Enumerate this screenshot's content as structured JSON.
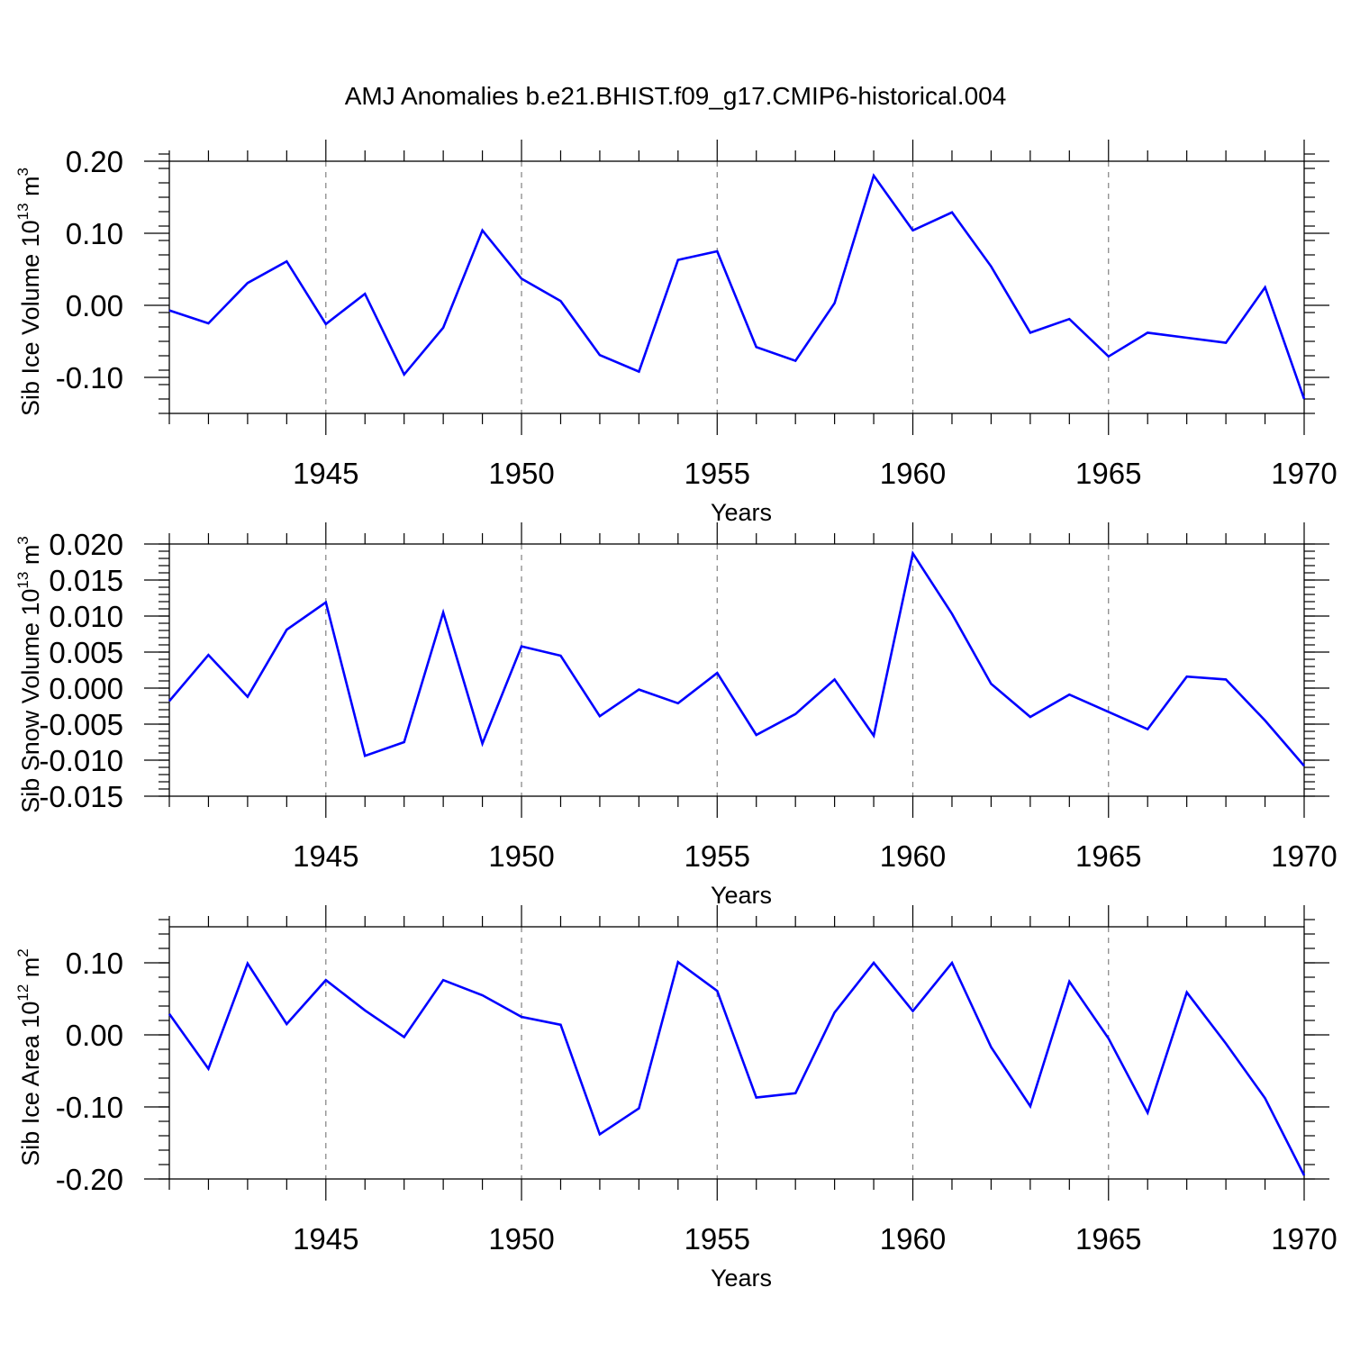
{
  "title": "AMJ Anomalies b.e21.BHIST.f09_g17.CMIP6-historical.004",
  "line_color": "#0000ff",
  "chart_data": [
    {
      "type": "line",
      "x": [
        1941,
        1942,
        1943,
        1944,
        1945,
        1946,
        1947,
        1948,
        1949,
        1950,
        1951,
        1952,
        1953,
        1954,
        1955,
        1956,
        1957,
        1958,
        1959,
        1960,
        1961,
        1962,
        1963,
        1964,
        1965,
        1966,
        1967,
        1968,
        1969,
        1970
      ],
      "values": [
        -0.007,
        -0.025,
        0.031,
        0.061,
        -0.026,
        0.016,
        -0.096,
        -0.031,
        0.104,
        0.037,
        0.006,
        -0.069,
        -0.092,
        0.063,
        0.075,
        -0.058,
        -0.077,
        0.003,
        0.18,
        0.104,
        0.129,
        0.054,
        -0.038,
        -0.019,
        -0.071,
        -0.038,
        -0.045,
        -0.052,
        0.025,
        -0.13
      ],
      "ylabel": "Sib Ice Volume 10",
      "ylabel_exp": "13",
      "ylabel_unit": " m",
      "ylabel_unit_exp": "3",
      "xlabel": "Years",
      "xlim": [
        1941,
        1970
      ],
      "ylim": [
        -0.15,
        0.2
      ],
      "yticks": [
        -0.1,
        0.0,
        0.1,
        0.2
      ],
      "ytick_labels": [
        "-0.10",
        "0.00",
        "0.10",
        "0.20"
      ],
      "yminor_step": 0.02,
      "xticks": [
        1945,
        1950,
        1955,
        1960,
        1965,
        1970
      ],
      "xtick_labels": [
        "1945",
        "1950",
        "1955",
        "1960",
        "1965",
        "1970"
      ],
      "grid_x": true
    },
    {
      "type": "line",
      "x": [
        1941,
        1942,
        1943,
        1944,
        1945,
        1946,
        1947,
        1948,
        1949,
        1950,
        1951,
        1952,
        1953,
        1954,
        1955,
        1956,
        1957,
        1958,
        1959,
        1960,
        1961,
        1962,
        1963,
        1964,
        1965,
        1966,
        1967,
        1968,
        1969,
        1970
      ],
      "values": [
        -0.0018,
        0.0046,
        -0.0012,
        0.0081,
        0.0119,
        -0.0094,
        -0.0075,
        0.0105,
        -0.0077,
        0.0058,
        0.0045,
        -0.0039,
        -0.0002,
        -0.0021,
        0.0021,
        -0.0065,
        -0.0036,
        0.0012,
        -0.0066,
        0.0187,
        0.0103,
        0.0006,
        -0.004,
        -0.0009,
        -0.0033,
        -0.0057,
        0.0016,
        0.0012,
        -0.0045,
        -0.0108
      ],
      "ylabel": "Sib Snow Volume 10",
      "ylabel_exp": "13",
      "ylabel_unit": " m",
      "ylabel_unit_exp": "3",
      "xlabel": "Years",
      "xlim": [
        1941,
        1970
      ],
      "ylim": [
        -0.015,
        0.02
      ],
      "yticks": [
        -0.015,
        -0.01,
        -0.005,
        0.0,
        0.005,
        0.01,
        0.015,
        0.02
      ],
      "ytick_labels": [
        "-0.015",
        "-0.010",
        "-0.005",
        "0.000",
        "0.005",
        "0.010",
        "0.015",
        "0.020"
      ],
      "yminor_step": 0.001,
      "xticks": [
        1945,
        1950,
        1955,
        1960,
        1965,
        1970
      ],
      "xtick_labels": [
        "1945",
        "1950",
        "1955",
        "1960",
        "1965",
        "1970"
      ],
      "grid_x": true
    },
    {
      "type": "line",
      "x": [
        1941,
        1942,
        1943,
        1944,
        1945,
        1946,
        1947,
        1948,
        1949,
        1950,
        1951,
        1952,
        1953,
        1954,
        1955,
        1956,
        1957,
        1958,
        1959,
        1960,
        1961,
        1962,
        1963,
        1964,
        1965,
        1966,
        1967,
        1968,
        1969,
        1970
      ],
      "values": [
        0.029,
        -0.047,
        0.099,
        0.015,
        0.076,
        0.034,
        -0.003,
        0.076,
        0.055,
        0.025,
        0.014,
        -0.138,
        -0.102,
        0.101,
        0.061,
        -0.087,
        -0.081,
        0.031,
        0.1,
        0.033,
        0.1,
        -0.017,
        -0.099,
        0.074,
        -0.005,
        -0.108,
        0.059,
        -0.012,
        -0.088,
        -0.195
      ],
      "ylabel": "Sib Ice Area 10",
      "ylabel_exp": "12",
      "ylabel_unit": " m",
      "ylabel_unit_exp": "2",
      "xlabel": "Years",
      "xlim": [
        1941,
        1970
      ],
      "ylim": [
        -0.2,
        0.15
      ],
      "yticks": [
        -0.2,
        -0.1,
        0.0,
        0.1
      ],
      "ytick_labels": [
        "-0.20",
        "-0.10",
        "0.00",
        "0.10"
      ],
      "yminor_step": 0.02,
      "xticks": [
        1945,
        1950,
        1955,
        1960,
        1965,
        1970
      ],
      "xtick_labels": [
        "1945",
        "1950",
        "1955",
        "1960",
        "1965",
        "1970"
      ],
      "grid_x": true
    }
  ]
}
